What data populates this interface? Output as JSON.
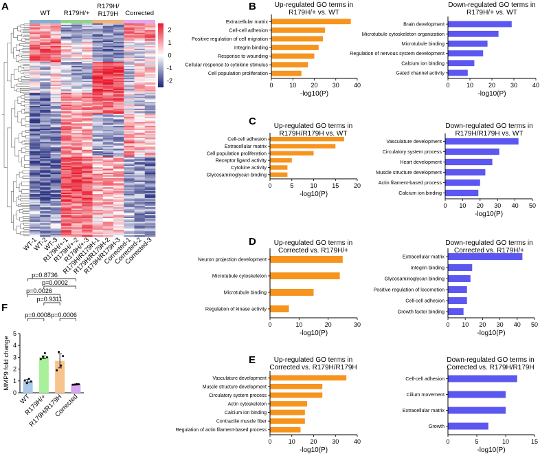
{
  "panel_letters": [
    "A",
    "B",
    "C",
    "D",
    "E",
    "F"
  ],
  "colors": {
    "up_bar": "#f7941d",
    "down_bar": "#5b57f0",
    "heat_high": "#e8192c",
    "heat_mid": "#ffffff",
    "heat_low": "#1a2378",
    "group_wt": "#7fb3d5",
    "group_r179h_het": "#8fd68c",
    "group_r179h_hom": "#f3b27a",
    "group_corrected": "#e3a8f0",
    "mmp9_wt": "#a9c8ea",
    "mmp9_het": "#a8f09a",
    "mmp9_hom": "#f7c48e",
    "mmp9_corr": "#d9a6f5"
  },
  "chart_data": [
    {
      "id": "A",
      "type": "heatmap",
      "group_labels": [
        "WT",
        "R179H/+",
        "R179H/\nR179H",
        "Corrected"
      ],
      "sample_labels": [
        "WT-1",
        "WT-2",
        "WT-3",
        "R179H/+-1",
        "R179H/+-2",
        "R179H/+-3",
        "R179H/R179H-1",
        "R179H/R179H-2",
        "R179H/R179H-3",
        "Corrected-1",
        "Corrected-2",
        "Corrected-3"
      ],
      "colorbar_ticks": [
        2,
        1,
        0,
        -1,
        -2
      ],
      "color_range": [
        -2.5,
        2.5
      ]
    },
    {
      "id": "B-up",
      "type": "bar",
      "orientation": "horizontal",
      "title": "Up-regulated GO terms in\nR179H/+ vs. WT",
      "categories": [
        "Extracellular matrix",
        "Cell-cell adhesion",
        "Positive regulation of cell migration",
        "Integrin binding",
        "Response to wounding",
        "Cellular response to cytokine stimulus",
        "Cell population proliferation"
      ],
      "values": [
        37,
        25,
        24,
        22,
        20,
        17,
        14
      ],
      "xlabel": "-log10(P)",
      "xlim": [
        0,
        40
      ],
      "ticks": [
        0,
        10,
        20,
        30,
        40
      ]
    },
    {
      "id": "B-down",
      "type": "bar",
      "orientation": "horizontal",
      "title": "Down-regulated GO terms in\nR179H/+ vs. WT",
      "categories": [
        "Brain development",
        "Microtubule cytoskeleton organization",
        "Microtubule binding",
        "Regulation of nervous system development",
        "Calcium ion binding",
        "Gated channel activity"
      ],
      "values": [
        29,
        23,
        18,
        16,
        12,
        9
      ],
      "xlabel": "-log10(P)",
      "xlim": [
        0,
        40
      ],
      "ticks": [
        0,
        10,
        20,
        30,
        40
      ]
    },
    {
      "id": "C-up",
      "type": "bar",
      "orientation": "horizontal",
      "title": "Up-regulated GO terms in\nR179H/R179H vs. WT",
      "categories": [
        "Cell-cell adhesion",
        "Extracellular matrix",
        "Cell population proliferation",
        "Receptor ligand activity",
        "Cytokine activity",
        "Glycosaminoglycan binding"
      ],
      "values": [
        17,
        15,
        10,
        5,
        4,
        4
      ],
      "xlabel": "-log10(P)",
      "xlim": [
        0,
        20
      ],
      "ticks": [
        0,
        5,
        10,
        15,
        20
      ]
    },
    {
      "id": "C-down",
      "type": "bar",
      "orientation": "horizontal",
      "title": "Down-regulated GO terms in\nR179H/R179H vs. WT",
      "categories": [
        "Vasculature development",
        "Circulatory system process",
        "Heart development",
        "Muscle structure development",
        "Actin filament-based process",
        "Calcium ion binding"
      ],
      "values": [
        42,
        31,
        27,
        23,
        20,
        19
      ],
      "xlabel": "-log10(P)",
      "xlim": [
        0,
        50
      ],
      "ticks": [
        0,
        10,
        20,
        30,
        40,
        50
      ]
    },
    {
      "id": "D-up",
      "type": "bar",
      "orientation": "horizontal",
      "title": "Up-regulated GO terms in\nCorrected vs. R179H/+",
      "categories": [
        "Neuron projection development",
        "Microtubule cytoskeleton",
        "Microtubule binding",
        "Regulation of kinase activity"
      ],
      "values": [
        25,
        24,
        15,
        6.5
      ],
      "xlabel": "-log10(P)",
      "xlim": [
        0,
        30
      ],
      "ticks": [
        0,
        10,
        20,
        30
      ]
    },
    {
      "id": "D-down",
      "type": "bar",
      "orientation": "horizontal",
      "title": "Down-regulated GO terms in\nCorrected vs. R179H/+",
      "categories": [
        "Extracellular matrix",
        "Integrin binding",
        "Glycosaminoglycan binding",
        "Positive regulation of locomotion",
        "Cell-cell adhesion",
        "Growth factor binding"
      ],
      "values": [
        43,
        14,
        13,
        11,
        11,
        9
      ],
      "xlabel": "-log10(P)",
      "xlim": [
        0,
        50
      ],
      "ticks": [
        0,
        10,
        20,
        30,
        40,
        50
      ]
    },
    {
      "id": "E-up",
      "type": "bar",
      "orientation": "horizontal",
      "title": "Up-regulated GO terms in\nCorrected vs. R179H/R179H",
      "categories": [
        "Vasculature development",
        "Muscle structure development",
        "Circulatory system process",
        "Actin cytoskeleton",
        "Calcium ion binding",
        "Contractile muscle fiber",
        "Regulation of actin filament-based process"
      ],
      "values": [
        35,
        24,
        24,
        17,
        16,
        16,
        14
      ],
      "xlabel": "-log10(P)",
      "xlim": [
        0,
        40
      ],
      "ticks": [
        0,
        10,
        20,
        30,
        40
      ]
    },
    {
      "id": "E-down",
      "type": "bar",
      "orientation": "horizontal",
      "title": "Down-regulated GO terms in\nCorrected vs. R179H/R179H",
      "categories": [
        "Cell-cell adhesion",
        "Cilium movement",
        "Extracellular matrix",
        "Growth"
      ],
      "values": [
        12,
        10,
        10,
        7
      ],
      "xlabel": "-log10(P)",
      "xlim": [
        0,
        15
      ],
      "ticks": [
        0,
        5,
        10,
        15
      ]
    },
    {
      "id": "F",
      "type": "bar",
      "orientation": "vertical",
      "categories": [
        "WT",
        "R179H/+",
        "R179H/R179H",
        "Corrected"
      ],
      "values": [
        1.0,
        3.0,
        2.7,
        0.7
      ],
      "errors": [
        0.12,
        0.12,
        0.6,
        0.05
      ],
      "points": [
        [
          1.05,
          0.82,
          1.18,
          0.95
        ],
        [
          2.85,
          3.05,
          3.35,
          3.0
        ],
        [
          1.9,
          3.45,
          2.3,
          3.1
        ],
        [
          0.68,
          0.7,
          0.74,
          0.72
        ]
      ],
      "ylabel": "MMP9 fold change",
      "ylim": [
        0,
        5
      ],
      "ticks": [
        0,
        1,
        2,
        3,
        4,
        5
      ],
      "comparisons": [
        {
          "a": 0,
          "b": 3,
          "label": "p=0.8736"
        },
        {
          "a": 1,
          "b": 3,
          "label": "p=0.0002"
        },
        {
          "a": 0,
          "b": 2,
          "label": "p=0.0026"
        },
        {
          "a": 1,
          "b": 2,
          "label": "p=0.9311"
        },
        {
          "a": 0,
          "b": 1,
          "label": "p=0.0008"
        },
        {
          "a": 2,
          "b": 3,
          "label": "p=0.0006"
        }
      ]
    }
  ]
}
